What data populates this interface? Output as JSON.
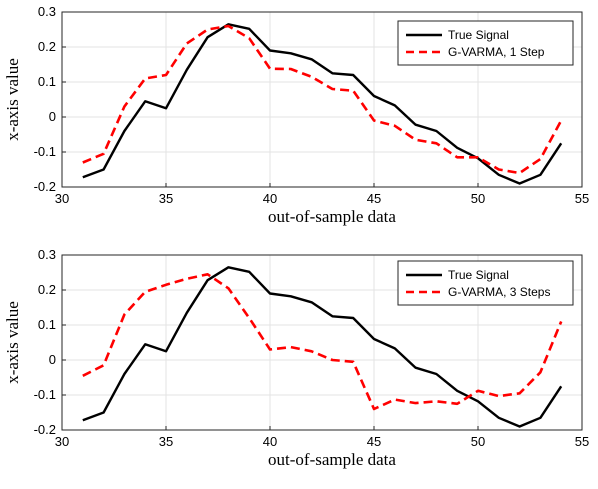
{
  "chart_data": [
    {
      "type": "line",
      "title": "",
      "xlabel": "out-of-sample data",
      "ylabel": "x-axis value",
      "xlim": [
        30,
        55
      ],
      "ylim": [
        -0.2,
        0.3
      ],
      "xticks": [
        30,
        35,
        40,
        45,
        50,
        55
      ],
      "yticks": [
        -0.2,
        -0.1,
        0,
        0.1,
        0.2,
        0.3
      ],
      "ytick_labels": [
        "-0.2",
        "-0.1",
        "0",
        "0.1",
        "0.2",
        "0.3"
      ],
      "grid": true,
      "legend_position": "top-right",
      "x": [
        31,
        32,
        33,
        34,
        35,
        36,
        37,
        38,
        39,
        40,
        41,
        42,
        43,
        44,
        45,
        46,
        47,
        48,
        49,
        50,
        51,
        52,
        53,
        54
      ],
      "series": [
        {
          "name": "True Signal",
          "color": "#000000",
          "style": "solid",
          "values": [
            -0.172,
            -0.15,
            -0.04,
            0.045,
            0.025,
            0.135,
            0.228,
            0.265,
            0.252,
            0.19,
            0.182,
            0.165,
            0.125,
            0.12,
            0.06,
            0.033,
            -0.022,
            -0.04,
            -0.088,
            -0.118,
            -0.165,
            -0.19,
            -0.165,
            -0.075
          ]
        },
        {
          "name": "G-VARMA, 1 Step",
          "color": "#ff0000",
          "style": "dashed",
          "values": [
            -0.13,
            -0.105,
            0.03,
            0.11,
            0.12,
            0.21,
            0.25,
            0.26,
            0.225,
            0.138,
            0.137,
            0.115,
            0.08,
            0.075,
            -0.01,
            -0.025,
            -0.065,
            -0.075,
            -0.115,
            -0.115,
            -0.15,
            -0.16,
            -0.12,
            -0.01
          ]
        }
      ]
    },
    {
      "type": "line",
      "title": "",
      "xlabel": "out-of-sample data",
      "ylabel": "x-axis value",
      "xlim": [
        30,
        55
      ],
      "ylim": [
        -0.2,
        0.3
      ],
      "xticks": [
        30,
        35,
        40,
        45,
        50,
        55
      ],
      "yticks": [
        -0.2,
        -0.1,
        0,
        0.1,
        0.2,
        0.3
      ],
      "ytick_labels": [
        "-0.2",
        "-0.1",
        "0",
        "0.1",
        "0.2",
        "0.3"
      ],
      "grid": true,
      "legend_position": "top-right",
      "x": [
        31,
        32,
        33,
        34,
        35,
        36,
        37,
        38,
        39,
        40,
        41,
        42,
        43,
        44,
        45,
        46,
        47,
        48,
        49,
        50,
        51,
        52,
        53,
        54
      ],
      "series": [
        {
          "name": "True Signal",
          "color": "#000000",
          "style": "solid",
          "values": [
            -0.172,
            -0.15,
            -0.04,
            0.045,
            0.025,
            0.135,
            0.228,
            0.265,
            0.252,
            0.19,
            0.182,
            0.165,
            0.125,
            0.12,
            0.06,
            0.033,
            -0.022,
            -0.04,
            -0.088,
            -0.118,
            -0.165,
            -0.19,
            -0.165,
            -0.075
          ]
        },
        {
          "name": "G-VARMA, 3 Steps",
          "color": "#ff0000",
          "style": "dashed",
          "values": [
            -0.045,
            -0.015,
            0.13,
            0.195,
            0.215,
            0.232,
            0.245,
            0.205,
            0.12,
            0.03,
            0.037,
            0.025,
            0.0,
            -0.005,
            -0.14,
            -0.113,
            -0.123,
            -0.118,
            -0.125,
            -0.088,
            -0.103,
            -0.095,
            -0.035,
            0.11
          ]
        }
      ]
    }
  ]
}
